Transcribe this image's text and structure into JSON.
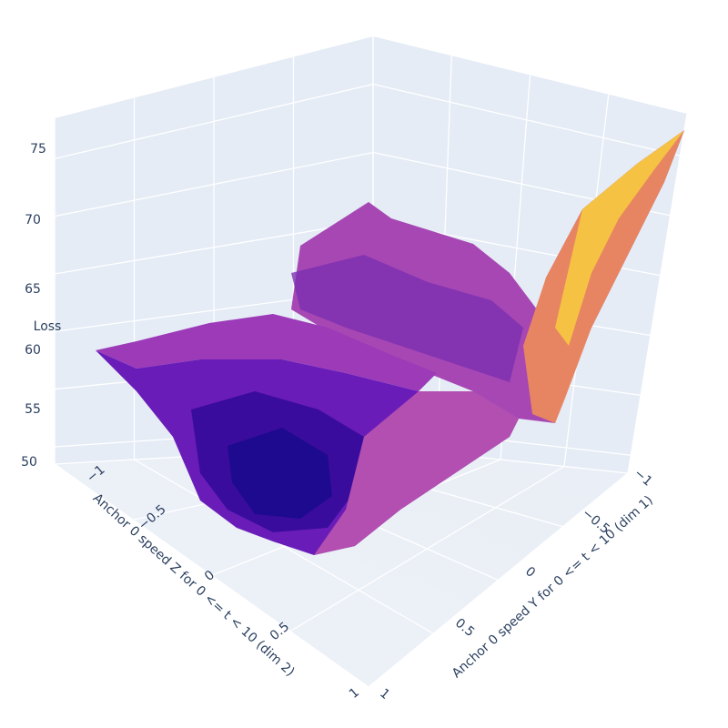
{
  "chart_data": {
    "type": "surface",
    "zaxis": {
      "title": "Loss",
      "ticks": [
        "50",
        "55",
        "60",
        "65",
        "70",
        "75"
      ],
      "range": [
        48,
        77
      ]
    },
    "xaxis": {
      "title": "Anchor 0 speed Z for 0 <= t < 10 (dim 2)",
      "ticks": [
        "−1",
        "−0.5",
        "0",
        "0.5",
        "1"
      ],
      "range": [
        -1,
        1
      ]
    },
    "yaxis": {
      "title": "Anchor 0 speed Y for 0 <= t < 10 (dim 1)",
      "ticks": [
        "−1",
        "−0.5",
        "0",
        "0.5",
        "1"
      ],
      "range": [
        -1,
        1
      ]
    },
    "colorscale": [
      "#0d0887",
      "#46039f",
      "#7201a8",
      "#9c179e",
      "#bd3786",
      "#d8576b",
      "#ed7953",
      "#fb9f3a",
      "#fdca26",
      "#f0f921"
    ],
    "background": "#e5ecf6",
    "gridcolor": "#ffffff",
    "surface_grid": {
      "dim2": [
        -1,
        -0.5,
        0,
        0.5,
        1
      ],
      "dim1": [
        -1,
        -0.5,
        0,
        0.5,
        1
      ],
      "loss": [
        [
          60,
          58,
          56,
          54,
          53
        ],
        [
          57,
          53,
          50.5,
          51,
          52.5
        ],
        [
          56,
          51,
          49,
          50,
          51.5
        ],
        [
          58,
          54,
          53,
          52,
          51
        ],
        [
          66,
          64,
          62,
          56,
          76
        ]
      ]
    }
  }
}
